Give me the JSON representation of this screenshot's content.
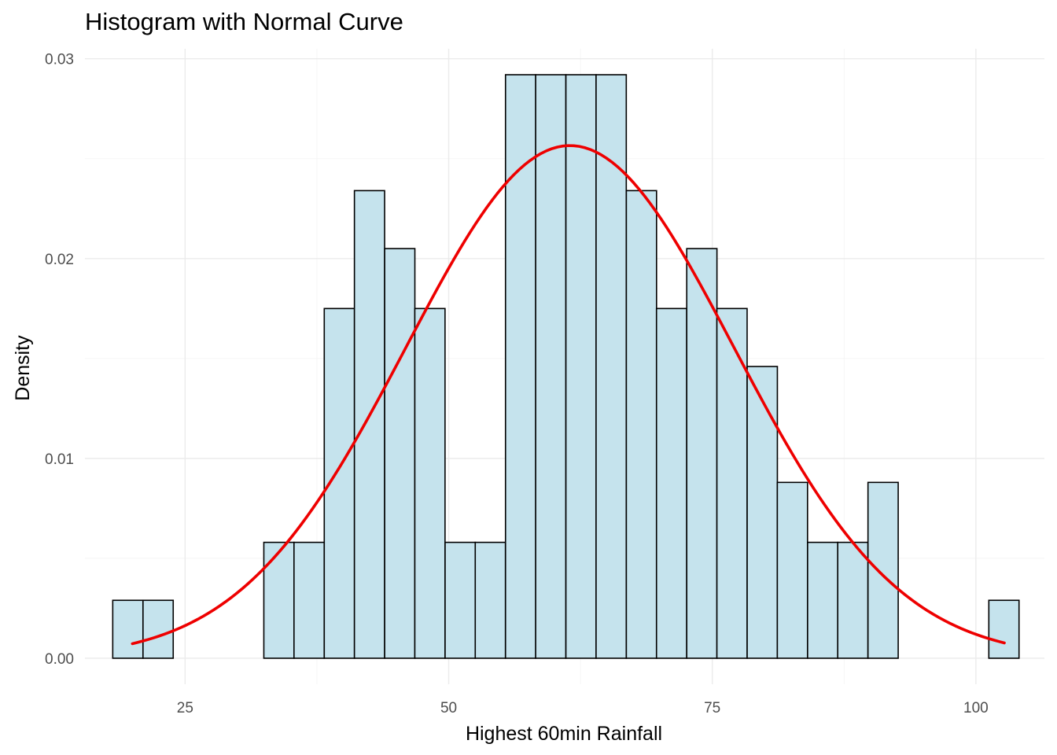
{
  "chart_data": {
    "type": "bar",
    "title": "Histogram with Normal Curve",
    "xlabel": "Highest 60min Rainfall",
    "ylabel": "Density",
    "xlim": [
      15.5,
      106.5
    ],
    "ylim": [
      -0.0013,
      0.0305
    ],
    "x_ticks": [
      25,
      50,
      75,
      100
    ],
    "x_tick_labels": [
      "25",
      "50",
      "75",
      "100"
    ],
    "y_ticks": [
      0.0,
      0.01,
      0.02,
      0.03
    ],
    "y_tick_labels": [
      "0.00",
      "0.01",
      "0.02",
      "0.03"
    ],
    "grid": true,
    "bin_width": 2.865,
    "bin_start": 18.14,
    "bins": [
      {
        "x": 19.57,
        "density": 0.0029
      },
      {
        "x": 22.44,
        "density": 0.0029
      },
      {
        "x": 25.3,
        "density": 0
      },
      {
        "x": 28.17,
        "density": 0
      },
      {
        "x": 31.03,
        "density": 0
      },
      {
        "x": 33.9,
        "density": 0.0058
      },
      {
        "x": 36.76,
        "density": 0.0058
      },
      {
        "x": 39.63,
        "density": 0.0175
      },
      {
        "x": 42.49,
        "density": 0.0234
      },
      {
        "x": 45.36,
        "density": 0.0205
      },
      {
        "x": 48.22,
        "density": 0.0175
      },
      {
        "x": 51.09,
        "density": 0.0058
      },
      {
        "x": 53.95,
        "density": 0.0058
      },
      {
        "x": 56.82,
        "density": 0.0292
      },
      {
        "x": 59.68,
        "density": 0.0292
      },
      {
        "x": 62.55,
        "density": 0.0292
      },
      {
        "x": 65.41,
        "density": 0.0292
      },
      {
        "x": 68.28,
        "density": 0.0234
      },
      {
        "x": 71.14,
        "density": 0.0175
      },
      {
        "x": 74.01,
        "density": 0.0205
      },
      {
        "x": 76.87,
        "density": 0.0175
      },
      {
        "x": 79.74,
        "density": 0.0146
      },
      {
        "x": 82.6,
        "density": 0.0088
      },
      {
        "x": 85.47,
        "density": 0.0058
      },
      {
        "x": 88.33,
        "density": 0.0058
      },
      {
        "x": 91.2,
        "density": 0.0088
      },
      {
        "x": 94.06,
        "density": 0
      },
      {
        "x": 96.93,
        "density": 0
      },
      {
        "x": 99.79,
        "density": 0
      },
      {
        "x": 102.66,
        "density": 0.0029
      }
    ],
    "normal_curve": {
      "mean": 61.5,
      "sd": 15.55,
      "x_range": [
        20.0,
        102.7
      ]
    },
    "colors": {
      "bar_fill": "#c5e3ed",
      "bar_stroke": "#000000",
      "curve": "#ee0000"
    }
  }
}
